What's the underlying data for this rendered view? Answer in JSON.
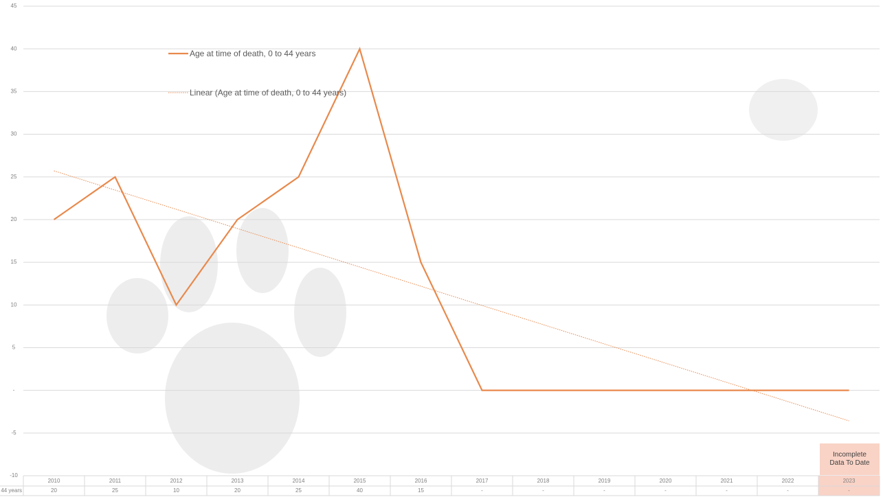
{
  "chart_data": {
    "type": "line",
    "categories": [
      "2010",
      "2011",
      "2012",
      "2013",
      "2014",
      "2015",
      "2016",
      "2017",
      "2018",
      "2019",
      "2020",
      "2021",
      "2022",
      "2023"
    ],
    "series": [
      {
        "name": "Age at time of death, 0 to 44 years",
        "color": "#e8894c",
        "values": [
          20,
          25,
          10,
          20,
          25,
          40,
          15,
          0,
          0,
          0,
          0,
          0,
          0,
          0
        ],
        "value_labels": [
          "20",
          "25",
          "10",
          "20",
          "25",
          "40",
          "15",
          "-",
          "-",
          "-",
          "-",
          "-",
          "-",
          "-"
        ]
      }
    ],
    "trendline": {
      "name": "Linear (Age at time of death, 0 to 44 years)",
      "color": "#e8894c",
      "start": 25.71,
      "end": -3.57
    },
    "table_row_label": "44 years",
    "annotation": "Incomplete Data To Date",
    "ylim": [
      -10,
      45
    ],
    "yticks": [
      -10,
      -5,
      {
        "value": 0,
        "label": "-"
      },
      5,
      10,
      15,
      20,
      25,
      30,
      35,
      40,
      45
    ],
    "grid": true
  }
}
